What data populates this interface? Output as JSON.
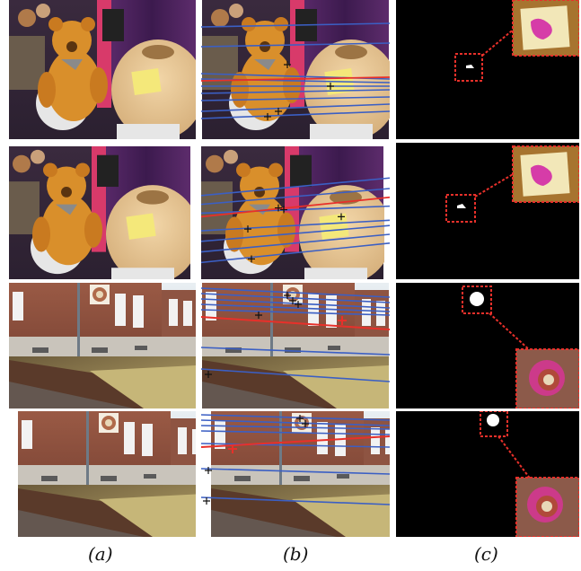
{
  "captions": [
    "(a)",
    "(b)",
    "(c)"
  ],
  "colors": {
    "match_line_blue": "#3b5fc4",
    "match_line_red": "#e8302a",
    "highlight_box": "#e8302a",
    "mask_background": "#000000",
    "mask_region": "#ffffff"
  },
  "rows": [
    {
      "scene": "teddy-bear-shop",
      "view": 1
    },
    {
      "scene": "teddy-bear-shop",
      "view": 2
    },
    {
      "scene": "brick-building",
      "view": 1
    },
    {
      "scene": "brick-building",
      "view": 2
    }
  ],
  "columns": [
    {
      "id": "a",
      "content": "input-image"
    },
    {
      "id": "b",
      "content": "epipolar-lines-and-keypoints"
    },
    {
      "id": "c",
      "content": "detected-region-mask-with-zoom-inset"
    }
  ]
}
